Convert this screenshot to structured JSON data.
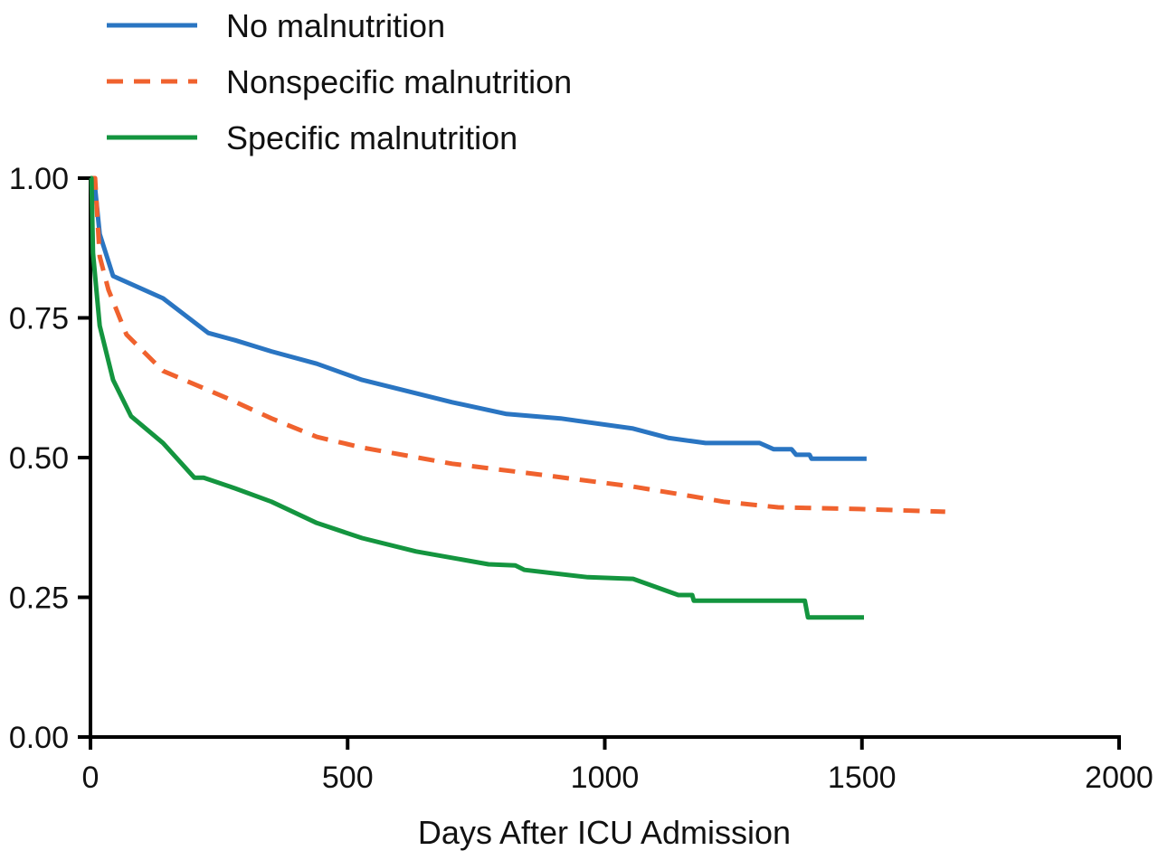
{
  "chart_data": {
    "type": "line",
    "title": "",
    "xlabel": "Days After ICU Admission",
    "ylabel": "",
    "xlim": [
      0,
      2000
    ],
    "ylim": [
      0,
      1
    ],
    "xticks": [
      "0",
      "500",
      "1000",
      "1500",
      "2000"
    ],
    "yticks": [
      "0.00",
      "0.25",
      "0.50",
      "0.75",
      "1.00"
    ],
    "grid": false,
    "legend_position": "top-left",
    "series": [
      {
        "name": "No malnutrition",
        "color": "#2a75c2",
        "dash": false,
        "x": [
          0,
          7,
          18,
          44,
          141,
          229,
          281,
          352,
          440,
          528,
          703,
          809,
          914,
          1055,
          1125,
          1196,
          1301,
          1328,
          1363,
          1372,
          1398,
          1402,
          1509
        ],
        "y": [
          1.0,
          1.0,
          0.9,
          0.825,
          0.785,
          0.723,
          0.71,
          0.69,
          0.668,
          0.639,
          0.599,
          0.578,
          0.57,
          0.552,
          0.535,
          0.526,
          0.526,
          0.515,
          0.515,
          0.505,
          0.505,
          0.498,
          0.498
        ]
      },
      {
        "name": "Nonspecific malnutrition",
        "color": "#f0622e",
        "dash": true,
        "x": [
          0,
          9,
          18,
          35,
          70,
          141,
          264,
          352,
          440,
          528,
          703,
          879,
          1055,
          1161,
          1231,
          1337,
          1495,
          1662
        ],
        "y": [
          1.0,
          1.0,
          0.86,
          0.8,
          0.72,
          0.655,
          0.607,
          0.57,
          0.537,
          0.518,
          0.489,
          0.469,
          0.448,
          0.432,
          0.421,
          0.411,
          0.408,
          0.403
        ]
      },
      {
        "name": "Specific malnutrition",
        "color": "#14953f",
        "dash": false,
        "x": [
          0,
          2,
          5,
          18,
          44,
          79,
          141,
          202,
          220,
          281,
          352,
          440,
          528,
          633,
          774,
          826,
          844,
          967,
          1055,
          1143,
          1170,
          1173,
          1389,
          1395,
          1504
        ],
        "y": [
          1.0,
          1.0,
          0.866,
          0.736,
          0.639,
          0.574,
          0.526,
          0.464,
          0.464,
          0.445,
          0.421,
          0.383,
          0.356,
          0.332,
          0.309,
          0.307,
          0.299,
          0.286,
          0.283,
          0.254,
          0.254,
          0.244,
          0.244,
          0.214,
          0.214
        ]
      }
    ]
  }
}
